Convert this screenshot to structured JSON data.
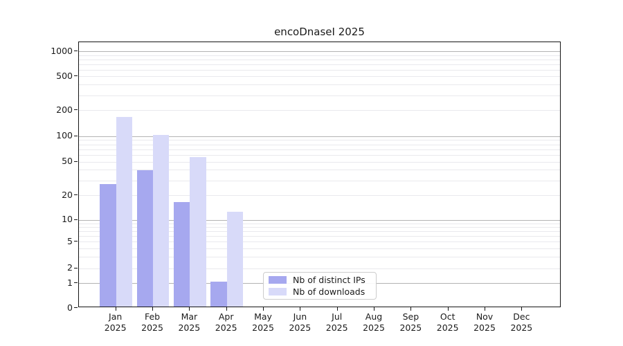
{
  "chart_data": {
    "type": "bar",
    "title": "encoDnaseI 2025",
    "categories": [
      "Jan",
      "Feb",
      "Mar",
      "Apr",
      "May",
      "Jun",
      "Jul",
      "Aug",
      "Sep",
      "Oct",
      "Nov",
      "Dec"
    ],
    "x_tick_year_line": "2025",
    "series": [
      {
        "name": "Nb of distinct IPs",
        "color": "#a6a8ef",
        "values": [
          26,
          38,
          16,
          1,
          0,
          0,
          0,
          0,
          0,
          0,
          0,
          0
        ]
      },
      {
        "name": "Nb of downloads",
        "color": "#d8daf9",
        "values": [
          160,
          100,
          55,
          12,
          0,
          0,
          0,
          0,
          0,
          0,
          0,
          0
        ]
      }
    ],
    "yscale": "symlog",
    "y_ticks": [
      0,
      1,
      2,
      5,
      10,
      20,
      50,
      100,
      200,
      500,
      1000
    ],
    "ylim": [
      0,
      1300
    ],
    "xlabel": "",
    "ylabel": "",
    "grid": "horizontal major and minor gridlines",
    "legend_position": "inside-bottom-center-left",
    "colors": {
      "major_grid": "#b3b3b3",
      "minor_grid": "#e9e9ed",
      "axis": "#141414",
      "background": "#ffffff"
    }
  }
}
